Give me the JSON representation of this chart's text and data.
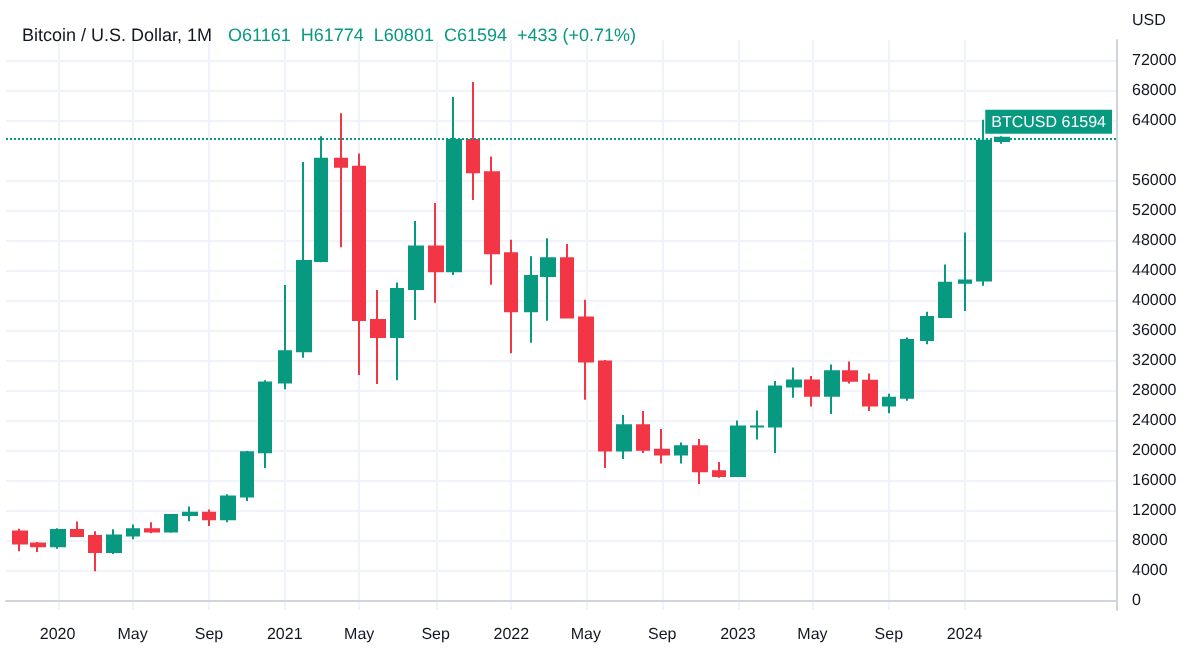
{
  "chart_data": {
    "type": "candlestick",
    "title": "Bitcoin / U.S. Dollar, 1M",
    "annotations": [
      "O61161",
      "H61774",
      "L60801",
      "C61594",
      "+433 (+0.71%)"
    ],
    "ylabel": "USD",
    "x": [
      "2019-11",
      "2019-12",
      "2020-01",
      "2020-02",
      "2020-03",
      "2020-04",
      "2020-05",
      "2020-06",
      "2020-07",
      "2020-08",
      "2020-09",
      "2020-10",
      "2020-11",
      "2020-12",
      "2021-01",
      "2021-02",
      "2021-03",
      "2021-04",
      "2021-05",
      "2021-06",
      "2021-07",
      "2021-08",
      "2021-09",
      "2021-10",
      "2021-11",
      "2021-12",
      "2022-01",
      "2022-02",
      "2022-03",
      "2022-04",
      "2022-05",
      "2022-06",
      "2022-07",
      "2022-08",
      "2022-09",
      "2022-10",
      "2022-11",
      "2022-12",
      "2023-01",
      "2023-02",
      "2023-03",
      "2023-04",
      "2023-05",
      "2023-06",
      "2023-07",
      "2023-08",
      "2023-09",
      "2023-10",
      "2023-11",
      "2023-12",
      "2024-01",
      "2024-02",
      "2024-03"
    ],
    "ohlc": [
      [
        9140,
        9510,
        6515,
        7546
      ],
      [
        7546,
        7745,
        6426,
        7193
      ],
      [
        7193,
        9577,
        6854,
        9350
      ],
      [
        9350,
        10500,
        8450,
        8543
      ],
      [
        8543,
        9190,
        3850,
        6424
      ],
      [
        6424,
        9460,
        6150,
        8629
      ],
      [
        8629,
        10080,
        8105,
        9448
      ],
      [
        9448,
        10380,
        8910,
        9138
      ],
      [
        9138,
        11430,
        8990,
        11335
      ],
      [
        11335,
        12470,
        10520,
        11655
      ],
      [
        11655,
        12070,
        9880,
        10777
      ],
      [
        10777,
        14100,
        10400,
        13797
      ],
      [
        13797,
        19860,
        13200,
        19703
      ],
      [
        19703,
        29300,
        17600,
        28990
      ],
      [
        28990,
        41990,
        28100,
        33140
      ],
      [
        33140,
        58350,
        32300,
        45160
      ],
      [
        45160,
        61790,
        44990,
        58800
      ],
      [
        58800,
        64850,
        47000,
        57720
      ],
      [
        57720,
        59500,
        30000,
        37300
      ],
      [
        37300,
        41300,
        28800,
        35040
      ],
      [
        35040,
        42300,
        29300,
        41460
      ],
      [
        41460,
        50500,
        37330,
        47100
      ],
      [
        47100,
        52900,
        39600,
        43820
      ],
      [
        43820,
        67000,
        43300,
        61300
      ],
      [
        61300,
        69000,
        53300,
        57000
      ],
      [
        57000,
        59100,
        42000,
        46200
      ],
      [
        46200,
        48000,
        32900,
        38480
      ],
      [
        38480,
        45800,
        34300,
        43180
      ],
      [
        43180,
        48200,
        37200,
        45530
      ],
      [
        45530,
        47450,
        37600,
        37640
      ],
      [
        37640,
        40000,
        26700,
        31800
      ],
      [
        31800,
        31990,
        17600,
        19940
      ],
      [
        19940,
        24680,
        18800,
        23300
      ],
      [
        23300,
        25200,
        19600,
        20050
      ],
      [
        20050,
        22800,
        18200,
        19420
      ],
      [
        19420,
        21000,
        18200,
        20490
      ],
      [
        20490,
        21480,
        15480,
        17170
      ],
      [
        17170,
        18400,
        16300,
        16540
      ],
      [
        16540,
        23950,
        16500,
        23130
      ],
      [
        23130,
        25250,
        21400,
        23140
      ],
      [
        23140,
        29200,
        19600,
        28470
      ],
      [
        28470,
        31000,
        26950,
        29250
      ],
      [
        29250,
        29850,
        25800,
        27220
      ],
      [
        27220,
        31400,
        24800,
        30480
      ],
      [
        30480,
        31800,
        28850,
        29230
      ],
      [
        29230,
        30200,
        25200,
        25940
      ],
      [
        25940,
        27500,
        24900,
        26960
      ],
      [
        26960,
        35000,
        26550,
        34660
      ],
      [
        34660,
        38400,
        34100,
        37720
      ],
      [
        37720,
        44700,
        37600,
        42280
      ],
      [
        42280,
        48970,
        38500,
        42580
      ],
      [
        42580,
        63970,
        41880,
        61190
      ],
      [
        61161,
        61774,
        60801,
        61594
      ]
    ],
    "colors": [
      "#f23645",
      "#f23645",
      "#089981",
      "#f23645",
      "#f23645",
      "#089981",
      "#089981",
      "#f23645",
      "#089981",
      "#089981",
      "#f23645",
      "#089981",
      "#089981",
      "#089981",
      "#089981",
      "#089981",
      "#089981",
      "#f23645",
      "#f23645",
      "#f23645",
      "#089981",
      "#089981",
      "#f23645",
      "#089981",
      "#f23645",
      "#f23645",
      "#f23645",
      "#089981",
      "#089981",
      "#f23645",
      "#f23645",
      "#f23645",
      "#089981",
      "#f23645",
      "#f23645",
      "#089981",
      "#f23645",
      "#f23645",
      "#089981",
      "#089981",
      "#089981",
      "#089981",
      "#f23645",
      "#089981",
      "#f23645",
      "#f23645",
      "#089981",
      "#089981",
      "#089981",
      "#089981",
      "#089981",
      "#089981",
      "#089981"
    ],
    "xlim": [
      "2019-10-10",
      "2024-09-01"
    ],
    "xticks": [
      {
        "value": "2020-01",
        "label": "2020"
      },
      {
        "value": "2020-05",
        "label": "May"
      },
      {
        "value": "2020-09",
        "label": "Sep"
      },
      {
        "value": "2021-01",
        "label": "2021"
      },
      {
        "value": "2021-05",
        "label": "May"
      },
      {
        "value": "2021-09",
        "label": "Sep"
      },
      {
        "value": "2022-01",
        "label": "2022"
      },
      {
        "value": "2022-05",
        "label": "May"
      },
      {
        "value": "2022-09",
        "label": "Sep"
      },
      {
        "value": "2023-01",
        "label": "2023"
      },
      {
        "value": "2023-05",
        "label": "May"
      },
      {
        "value": "2023-09",
        "label": "Sep"
      },
      {
        "value": "2024-01",
        "label": "2024"
      }
    ],
    "ylim": [
      -1300,
      74600
    ],
    "yticks": [
      0,
      4000,
      8000,
      12000,
      16000,
      20000,
      24000,
      28000,
      32000,
      36000,
      40000,
      44000,
      48000,
      52000,
      56000,
      64000,
      68000,
      72000
    ],
    "ref_lines": [
      {
        "axis": "y",
        "value": 61594,
        "label": "BTCUSD 61594",
        "color": "#089981",
        "line_style": "dotted"
      }
    ],
    "grid": true
  }
}
